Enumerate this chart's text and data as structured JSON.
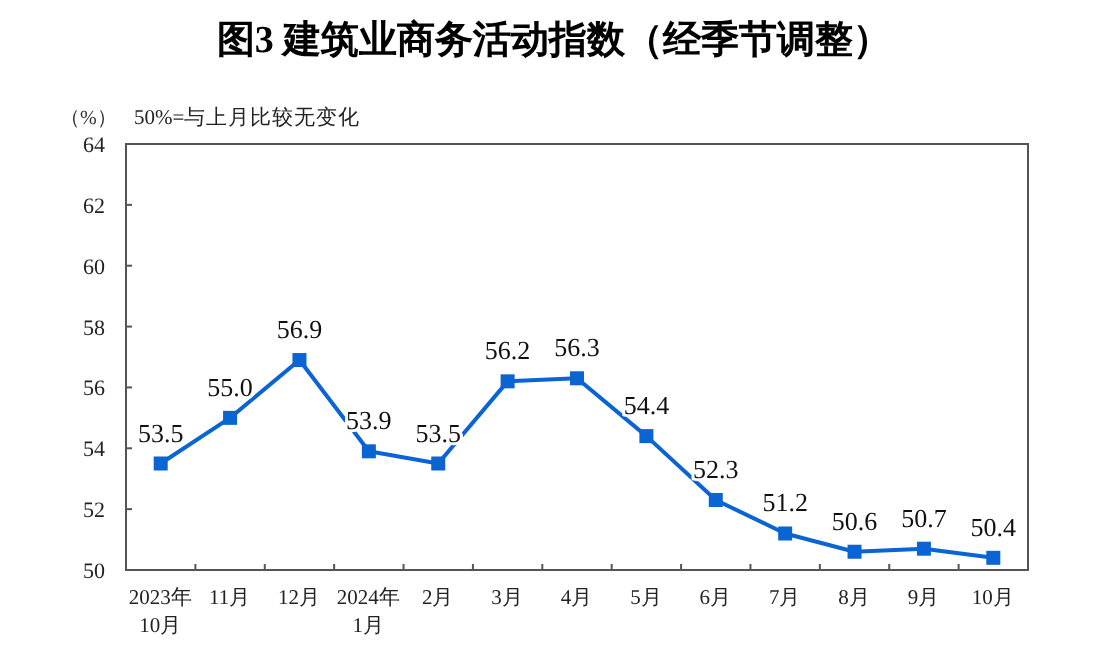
{
  "chart_data": {
    "type": "line",
    "title": "图3  建筑业商务活动指数（经季节调整）",
    "ylabel": "（%）",
    "annotations": [
      "50%=与上月比较无变化"
    ],
    "categories": [
      "2023年10月",
      "11月",
      "12月",
      "2024年1月",
      "2月",
      "3月",
      "4月",
      "5月",
      "6月",
      "7月",
      "8月",
      "9月",
      "10月"
    ],
    "series": [
      {
        "color": "#0a64d2",
        "values": [
          53.5,
          55.0,
          56.9,
          53.9,
          53.5,
          56.2,
          56.3,
          54.4,
          52.3,
          51.2,
          50.6,
          50.7,
          50.4
        ]
      }
    ],
    "value_labels": [
      "53.5",
      "55.0",
      "56.9",
      "53.9",
      "53.5",
      "56.2",
      "56.3",
      "54.4",
      "52.3",
      "51.2",
      "50.6",
      "50.7",
      "50.4"
    ],
    "ylim": [
      50,
      64
    ],
    "yticks": [
      50,
      52,
      54,
      56,
      58,
      60,
      62,
      64
    ],
    "marker": "square",
    "grid": false
  }
}
